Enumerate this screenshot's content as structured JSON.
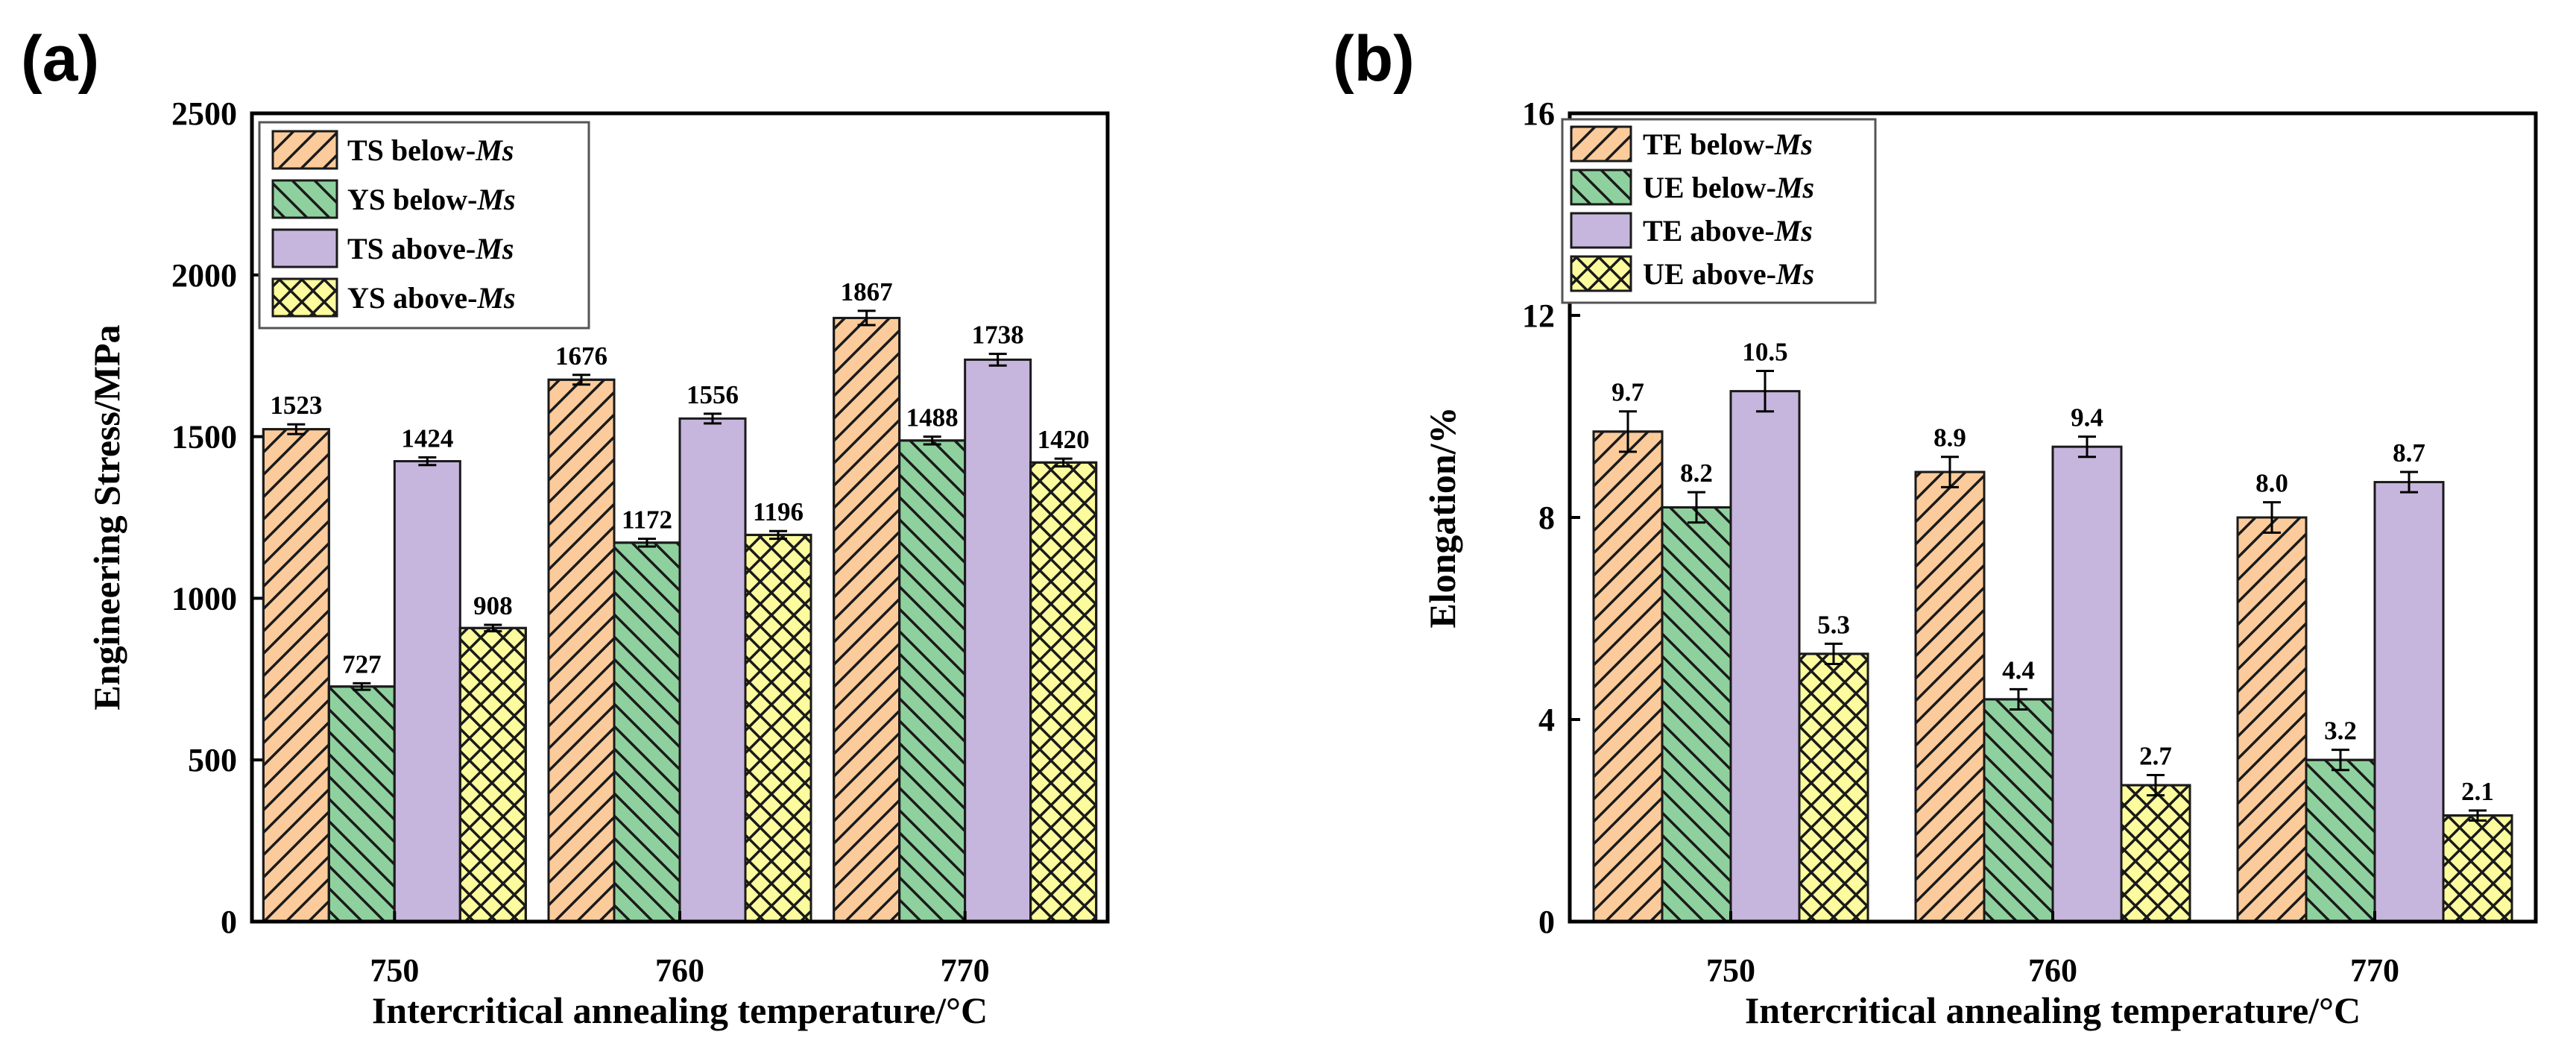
{
  "panels": [
    {
      "panel_label": "(a)",
      "ms_symbol": "Ms",
      "legend_entries": [
        {
          "prefix": "TS below-",
          "suffix": "Ms"
        },
        {
          "prefix": "YS below-",
          "suffix": "Ms"
        },
        {
          "prefix": "TS above-",
          "suffix": "Ms"
        },
        {
          "prefix": "YS above-",
          "suffix": "Ms"
        }
      ],
      "y_tick_labels": [
        "0",
        "500",
        "1000",
        "1500",
        "2000",
        "2500"
      ]
    },
    {
      "panel_label": "(b)",
      "ms_symbol": "Ms",
      "legend_entries": [
        {
          "prefix": "TE below-",
          "suffix": "Ms"
        },
        {
          "prefix": "UE below-",
          "suffix": "Ms"
        },
        {
          "prefix": "TE above-",
          "suffix": "Ms"
        },
        {
          "prefix": "UE above-",
          "suffix": "Ms"
        }
      ],
      "y_tick_labels": [
        "0",
        "4",
        "8",
        "12",
        "16"
      ]
    }
  ],
  "colors": {
    "orange": "#FBCB9C",
    "green": "#8FD19E",
    "purple": "#C6B6DD",
    "yellow": "#FCFC9E",
    "stroke": "#1a1a1a"
  },
  "chart_data": [
    {
      "type": "bar",
      "title": "",
      "xlabel": "Intercritical annealing temperature/°C",
      "ylabel": "Engineering Stress/MPa",
      "categories": [
        "750",
        "760",
        "770"
      ],
      "ylim": [
        0,
        2500
      ],
      "yticks": [
        0,
        500,
        1000,
        1500,
        2000,
        2500
      ],
      "legend_position": "top-left",
      "series": [
        {
          "name": "TS below-Ms",
          "values": [
            1523,
            1676,
            1867
          ],
          "errors": [
            15,
            15,
            22
          ],
          "labels": [
            "1523",
            "1676",
            "1867"
          ],
          "color": "#FBCB9C",
          "pattern": "forward-hatch"
        },
        {
          "name": "YS below-Ms",
          "values": [
            727,
            1172,
            1488
          ],
          "errors": [
            10,
            12,
            12
          ],
          "labels": [
            "727",
            "1172",
            "1488"
          ],
          "color": "#8FD19E",
          "pattern": "back-hatch"
        },
        {
          "name": "TS above-Ms",
          "values": [
            1424,
            1556,
            1738
          ],
          "errors": [
            12,
            15,
            18
          ],
          "labels": [
            "1424",
            "1556",
            "1738"
          ],
          "color": "#C6B6DD",
          "pattern": "none"
        },
        {
          "name": "YS above-Ms",
          "values": [
            908,
            1196,
            1420
          ],
          "errors": [
            10,
            12,
            12
          ],
          "labels": [
            "908",
            "1196",
            "1420"
          ],
          "color": "#FCFC9E",
          "pattern": "crosshatch"
        }
      ]
    },
    {
      "type": "bar",
      "title": "",
      "xlabel": "Intercritical annealing temperature/°C",
      "ylabel": "Elongation/%",
      "categories": [
        "750",
        "760",
        "770"
      ],
      "ylim": [
        0,
        16
      ],
      "yticks": [
        0,
        4,
        8,
        12,
        16
      ],
      "legend_position": "top-left",
      "series": [
        {
          "name": "TE below-Ms",
          "values": [
            9.7,
            8.9,
            8.0
          ],
          "errors": [
            0.4,
            0.3,
            0.3
          ],
          "labels": [
            "9.7",
            "8.9",
            "8.0"
          ],
          "color": "#FBCB9C",
          "pattern": "forward-hatch"
        },
        {
          "name": "UE below-Ms",
          "values": [
            8.2,
            4.4,
            3.2
          ],
          "errors": [
            0.3,
            0.2,
            0.2
          ],
          "labels": [
            "8.2",
            "4.4",
            "3.2"
          ],
          "color": "#8FD19E",
          "pattern": "back-hatch"
        },
        {
          "name": "TE above-Ms",
          "values": [
            10.5,
            9.4,
            8.7
          ],
          "errors": [
            0.4,
            0.2,
            0.2
          ],
          "labels": [
            "10.5",
            "9.4",
            "8.7"
          ],
          "color": "#C6B6DD",
          "pattern": "none"
        },
        {
          "name": "UE above-Ms",
          "values": [
            5.3,
            2.7,
            2.1
          ],
          "errors": [
            0.2,
            0.2,
            0.1
          ],
          "labels": [
            "5.3",
            "2.7",
            "2.1"
          ],
          "color": "#FCFC9E",
          "pattern": "crosshatch"
        }
      ]
    }
  ]
}
